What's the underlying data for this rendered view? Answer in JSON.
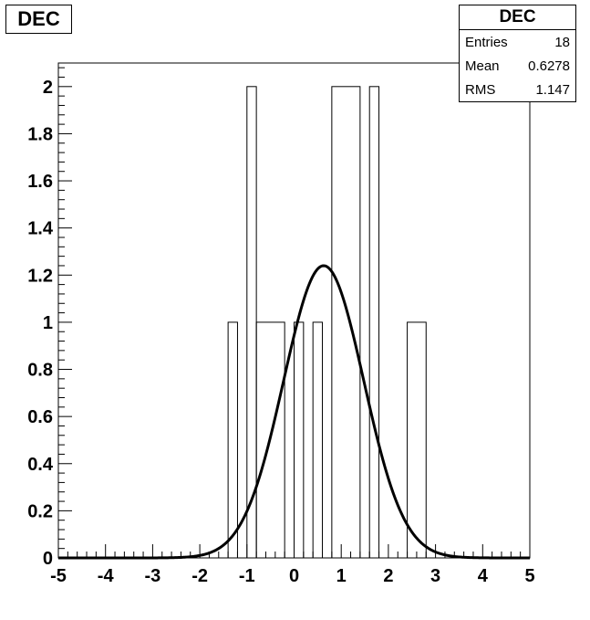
{
  "title": "DEC",
  "stats": {
    "title": "DEC",
    "rows": [
      {
        "label": "Entries",
        "value": "18"
      },
      {
        "label": "Mean",
        "value": "0.6278"
      },
      {
        "label": "RMS",
        "value": "1.147"
      }
    ]
  },
  "chart_data": {
    "type": "histogram",
    "title": "DEC",
    "xlim": [
      -5,
      5
    ],
    "ylim": [
      0,
      2.1
    ],
    "x_ticks": [
      "-5",
      "-4",
      "-3",
      "-2",
      "-1",
      "0",
      "1",
      "2",
      "3",
      "4",
      "5"
    ],
    "y_ticks": [
      "0",
      "0.2",
      "0.4",
      "0.6",
      "0.8",
      "1",
      "1.2",
      "1.4",
      "1.6",
      "1.8",
      "2"
    ],
    "bin_width": 0.2,
    "bins": [
      {
        "x0": -1.4,
        "x1": -1.2,
        "count": 1
      },
      {
        "x0": -1.0,
        "x1": -0.8,
        "count": 2
      },
      {
        "x0": -0.8,
        "x1": -0.2,
        "count": 1
      },
      {
        "x0": 0.0,
        "x1": 0.2,
        "count": 1
      },
      {
        "x0": 0.4,
        "x1": 0.6,
        "count": 1
      },
      {
        "x0": 0.8,
        "x1": 1.4,
        "count": 2
      },
      {
        "x0": 1.6,
        "x1": 1.8,
        "count": 2
      },
      {
        "x0": 2.4,
        "x1": 2.8,
        "count": 1
      }
    ],
    "fit": {
      "type": "gaussian",
      "peak": 1.24,
      "mean": 0.6278,
      "sigma": 0.85
    }
  }
}
